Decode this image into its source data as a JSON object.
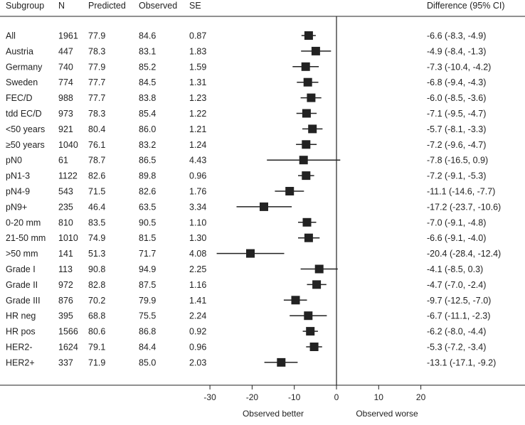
{
  "headers": {
    "subgroup": "Subgroup",
    "n": "N",
    "predicted": "Predicted",
    "observed": "Observed",
    "se": "SE",
    "difference": "Difference  (95% CI)"
  },
  "axis_labels": {
    "left": "Observed better",
    "right": "Observed worse"
  },
  "chart_data": {
    "type": "forest",
    "title": "",
    "xlabel_left": "Observed better",
    "xlabel_right": "Observed worse",
    "xlim": [
      -30,
      20
    ],
    "xticks": [
      -30,
      -20,
      -10,
      0,
      10,
      20
    ],
    "reference_line": 0,
    "rows": [
      {
        "label": "All",
        "n": "1961",
        "predicted": "77.9",
        "observed": "84.6",
        "se": "0.87",
        "diff": -6.6,
        "lo": -8.3,
        "hi": -4.9,
        "ci_text": "-6.6 (-8.3, -4.9)"
      },
      {
        "label": "Austria",
        "n": "447",
        "predicted": "78.3",
        "observed": "83.1",
        "se": "1.83",
        "diff": -4.9,
        "lo": -8.4,
        "hi": -1.3,
        "ci_text": "-4.9 (-8.4, -1.3)"
      },
      {
        "label": "Germany",
        "n": "740",
        "predicted": "77.9",
        "observed": "85.2",
        "se": "1.59",
        "diff": -7.3,
        "lo": -10.4,
        "hi": -4.2,
        "ci_text": "-7.3 (-10.4, -4.2)"
      },
      {
        "label": "Sweden",
        "n": "774",
        "predicted": "77.7",
        "observed": "84.5",
        "se": "1.31",
        "diff": -6.8,
        "lo": -9.4,
        "hi": -4.3,
        "ci_text": "-6.8 (-9.4, -4.3)"
      },
      {
        "label": "FEC/D",
        "n": "988",
        "predicted": "77.7",
        "observed": "83.8",
        "se": "1.23",
        "diff": -6.0,
        "lo": -8.5,
        "hi": -3.6,
        "ci_text": "-6.0 (-8.5, -3.6)"
      },
      {
        "label": "tdd EC/D",
        "n": "973",
        "predicted": "78.3",
        "observed": "85.4",
        "se": "1.22",
        "diff": -7.1,
        "lo": -9.5,
        "hi": -4.7,
        "ci_text": "-7.1 (-9.5, -4.7)"
      },
      {
        "label": "<50 years",
        "n": "921",
        "predicted": "80.4",
        "observed": "86.0",
        "se": "1.21",
        "diff": -5.7,
        "lo": -8.1,
        "hi": -3.3,
        "ci_text": "-5.7 (-8.1, -3.3)"
      },
      {
        "label": "≥50 years",
        "n": "1040",
        "predicted": "76.1",
        "observed": "83.2",
        "se": "1.24",
        "diff": -7.2,
        "lo": -9.6,
        "hi": -4.7,
        "ci_text": "-7.2 (-9.6, -4.7)"
      },
      {
        "label": "pN0",
        "n": "61",
        "predicted": "78.7",
        "observed": "86.5",
        "se": "4.43",
        "diff": -7.8,
        "lo": -16.5,
        "hi": 0.9,
        "ci_text": "-7.8 (-16.5, 0.9)"
      },
      {
        "label": "pN1-3",
        "n": "1122",
        "predicted": "82.6",
        "observed": "89.8",
        "se": "0.96",
        "diff": -7.2,
        "lo": -9.1,
        "hi": -5.3,
        "ci_text": "-7.2 (-9.1, -5.3)"
      },
      {
        "label": "pN4-9",
        "n": "543",
        "predicted": "71.5",
        "observed": "82.6",
        "se": "1.76",
        "diff": -11.1,
        "lo": -14.6,
        "hi": -7.7,
        "ci_text": "-11.1 (-14.6, -7.7)"
      },
      {
        "label": "pN9+",
        "n": "235",
        "predicted": "46.4",
        "observed": "63.5",
        "se": "3.34",
        "diff": -17.2,
        "lo": -23.7,
        "hi": -10.6,
        "ci_text": "-17.2 (-23.7, -10.6)"
      },
      {
        "label": "0-20 mm",
        "n": "810",
        "predicted": "83.5",
        "observed": "90.5",
        "se": "1.10",
        "diff": -7.0,
        "lo": -9.1,
        "hi": -4.8,
        "ci_text": "-7.0 (-9.1, -4.8)"
      },
      {
        "label": "21-50 mm",
        "n": "1010",
        "predicted": "74.9",
        "observed": "81.5",
        "se": "1.30",
        "diff": -6.6,
        "lo": -9.1,
        "hi": -4.0,
        "ci_text": "-6.6 (-9.1, -4.0)"
      },
      {
        "label": ">50 mm",
        "n": "141",
        "predicted": "51.3",
        "observed": "71.7",
        "se": "4.08",
        "diff": -20.4,
        "lo": -28.4,
        "hi": -12.4,
        "ci_text": "-20.4 (-28.4, -12.4)"
      },
      {
        "label": "Grade I",
        "n": "113",
        "predicted": "90.8",
        "observed": "94.9",
        "se": "2.25",
        "diff": -4.1,
        "lo": -8.5,
        "hi": 0.3,
        "ci_text": "-4.1 (-8.5, 0.3)"
      },
      {
        "label": "Grade II",
        "n": "972",
        "predicted": "82.8",
        "observed": "87.5",
        "se": "1.16",
        "diff": -4.7,
        "lo": -7.0,
        "hi": -2.4,
        "ci_text": "-4.7 (-7.0, -2.4)"
      },
      {
        "label": "Grade III",
        "n": "876",
        "predicted": "70.2",
        "observed": "79.9",
        "se": "1.41",
        "diff": -9.7,
        "lo": -12.5,
        "hi": -7.0,
        "ci_text": "-9.7 (-12.5, -7.0)"
      },
      {
        "label": "HR neg",
        "n": "395",
        "predicted": "68.8",
        "observed": "75.5",
        "se": "2.24",
        "diff": -6.7,
        "lo": -11.1,
        "hi": -2.3,
        "ci_text": "-6.7 (-11.1, -2.3)"
      },
      {
        "label": "HR pos",
        "n": "1566",
        "predicted": "80.6",
        "observed": "86.8",
        "se": "0.92",
        "diff": -6.2,
        "lo": -8.0,
        "hi": -4.4,
        "ci_text": "-6.2 (-8.0, -4.4)"
      },
      {
        "label": "HER2-",
        "n": "1624",
        "predicted": "79.1",
        "observed": "84.4",
        "se": "0.96",
        "diff": -5.3,
        "lo": -7.2,
        "hi": -3.4,
        "ci_text": "-5.3 (-7.2, -3.4)"
      },
      {
        "label": "HER2+",
        "n": "337",
        "predicted": "71.9",
        "observed": "85.0",
        "se": "2.03",
        "diff": -13.1,
        "lo": -17.1,
        "hi": -9.2,
        "ci_text": "-13.1 (-17.1, -9.2)"
      }
    ]
  },
  "colors": {
    "marker": "#222222",
    "line": "#222222",
    "text": "#222222"
  }
}
